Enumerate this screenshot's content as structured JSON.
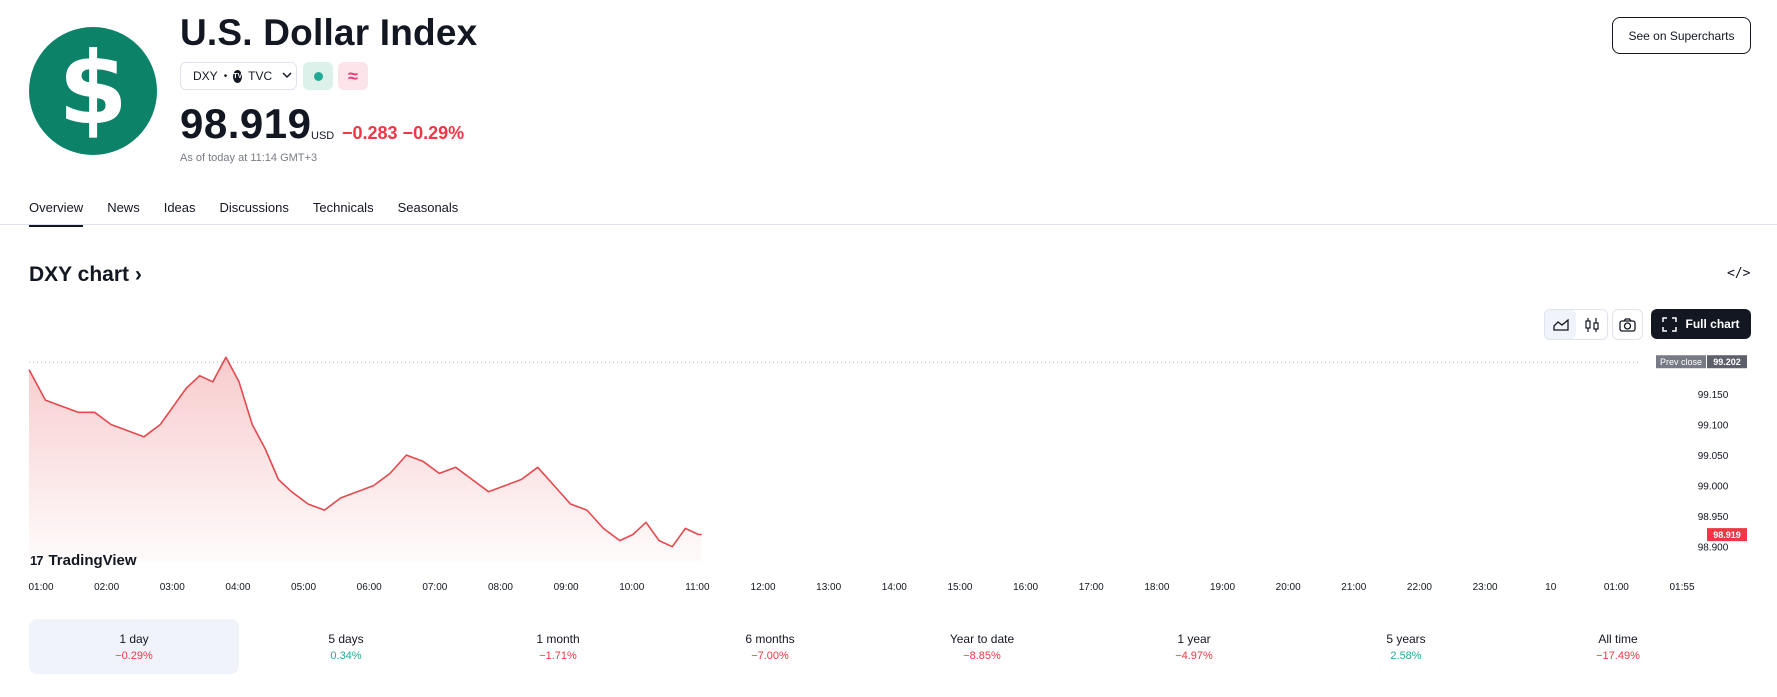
{
  "header": {
    "logo_glyph": "$",
    "title": "U.S. Dollar Index",
    "symbol": "DXY",
    "separator": "•",
    "exchange_badge": "TV",
    "exchange": "TVC",
    "delayed_glyph": "≈",
    "price": "98.919",
    "currency": "USD",
    "change": "−0.283 −0.29%",
    "as_of": "As of today at 11:14 GMT+3",
    "supercharts_label": "See on Supercharts"
  },
  "tabs": [
    {
      "label": "Overview",
      "active": true
    },
    {
      "label": "News"
    },
    {
      "label": "Ideas"
    },
    {
      "label": "Discussions"
    },
    {
      "label": "Technicals"
    },
    {
      "label": "Seasonals"
    }
  ],
  "chart_section": {
    "heading": "DXY chart ›",
    "embed_label": "</>",
    "full_chart_label": "Full chart",
    "brand": "TradingView",
    "brand_mark": "17"
  },
  "colors": {
    "accent_red": "#f23645",
    "accent_green": "#22ab94",
    "logo_green": "#0c8369",
    "line": "#e5484d"
  },
  "icons": [
    "dollar-icon",
    "chevron-down-icon",
    "area-chart-icon",
    "candles-icon",
    "camera-icon",
    "fullscreen-icon",
    "code-icon"
  ],
  "chart_data": {
    "type": "area",
    "prev_close_label": "Prev close",
    "prev_close": 99.202,
    "last": 98.919,
    "y_ticks": [
      99.15,
      99.1,
      99.05,
      99.0,
      98.95,
      98.9
    ],
    "y_tick_labels": [
      "99.150",
      "99.100",
      "99.050",
      "99.000",
      "98.950",
      "98.900"
    ],
    "ylim": [
      98.875,
      99.222
    ],
    "x_ticks": [
      "01:00",
      "02:00",
      "03:00",
      "04:00",
      "05:00",
      "06:00",
      "07:00",
      "08:00",
      "09:00",
      "10:00",
      "11:00",
      "12:00",
      "13:00",
      "14:00",
      "15:00",
      "16:00",
      "17:00",
      "18:00",
      "19:00",
      "20:00",
      "21:00",
      "22:00",
      "23:00",
      "10",
      "01:00",
      "01:55"
    ],
    "x_hours": [
      1.0,
      1.25,
      1.5,
      1.75,
      2.0,
      2.25,
      2.5,
      2.75,
      3.0,
      3.2,
      3.4,
      3.6,
      3.8,
      4.0,
      4.2,
      4.4,
      4.6,
      4.8,
      5.0,
      5.25,
      5.5,
      5.75,
      6.0,
      6.25,
      6.5,
      6.75,
      7.0,
      7.25,
      7.5,
      7.75,
      8.0,
      8.25,
      8.5,
      8.75,
      9.0,
      9.25,
      9.5,
      9.75,
      10.0,
      10.2,
      10.4,
      10.6,
      10.8,
      11.0,
      11.2,
      11.25
    ],
    "values": [
      99.19,
      99.14,
      99.13,
      99.12,
      99.12,
      99.1,
      99.09,
      99.08,
      99.1,
      99.13,
      99.16,
      99.18,
      99.17,
      99.21,
      99.17,
      99.1,
      99.06,
      99.01,
      98.99,
      98.97,
      98.96,
      98.98,
      98.99,
      99.0,
      99.02,
      99.05,
      99.04,
      99.02,
      99.03,
      99.01,
      98.99,
      99.0,
      99.01,
      99.03,
      99.0,
      98.97,
      98.96,
      98.93,
      98.91,
      98.92,
      98.94,
      98.91,
      98.9,
      98.93,
      98.92,
      98.92
    ]
  },
  "periods": [
    {
      "label": "1 day",
      "value": "−0.29%",
      "sign": "neg",
      "active": true
    },
    {
      "label": "5 days",
      "value": "0.34%",
      "sign": "pos"
    },
    {
      "label": "1 month",
      "value": "−1.71%",
      "sign": "neg"
    },
    {
      "label": "6 months",
      "value": "−7.00%",
      "sign": "neg"
    },
    {
      "label": "Year to date",
      "value": "−8.85%",
      "sign": "neg"
    },
    {
      "label": "1 year",
      "value": "−4.97%",
      "sign": "neg"
    },
    {
      "label": "5 years",
      "value": "2.58%",
      "sign": "pos"
    },
    {
      "label": "All time",
      "value": "−17.49%",
      "sign": "neg"
    }
  ]
}
